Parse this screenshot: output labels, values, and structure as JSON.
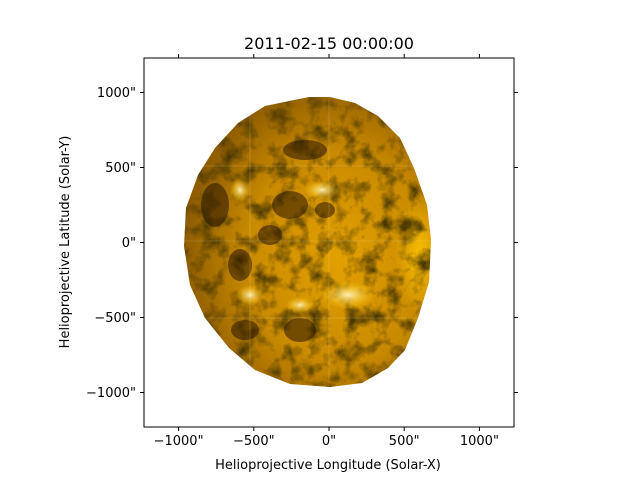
{
  "figure": {
    "title": "2011-02-15 00:00:00",
    "xlabel": "Helioprojective Longitude (Solar-X)",
    "ylabel": "Helioprojective Latitude (Solar-Y)",
    "xticks": [
      {
        "value": -1000,
        "label": "−1000\""
      },
      {
        "value": -500,
        "label": "−500\""
      },
      {
        "value": 0,
        "label": "0\""
      },
      {
        "value": 500,
        "label": "500\""
      },
      {
        "value": 1000,
        "label": "1000\""
      }
    ],
    "yticks": [
      {
        "value": 1000,
        "label": "1000\""
      },
      {
        "value": 500,
        "label": "500\""
      },
      {
        "value": 0,
        "label": "0\""
      },
      {
        "value": -500,
        "label": "−500\""
      },
      {
        "value": -1000,
        "label": "−1000\""
      }
    ],
    "xlim": [
      -1230,
      1230
    ],
    "ylim": [
      -1230,
      1230
    ],
    "colormap": [
      "#1a0d00",
      "#6b3f00",
      "#c98a00",
      "#ffc400",
      "#fff1b0"
    ]
  }
}
